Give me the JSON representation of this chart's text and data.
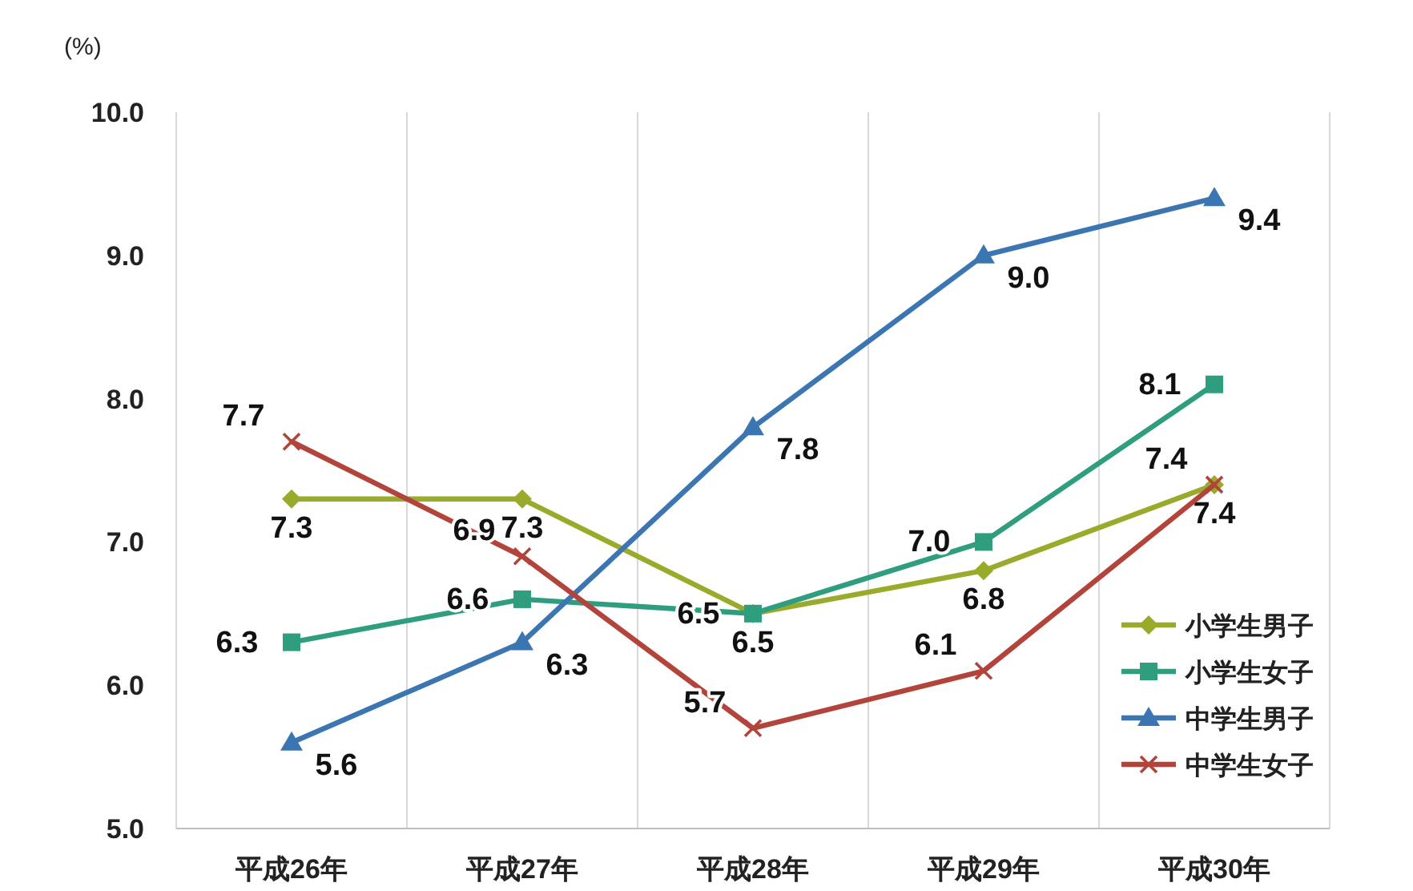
{
  "chart_data": {
    "type": "line",
    "ylabel": "(%)",
    "categories": [
      "平成26年",
      "平成27年",
      "平成28年",
      "平成29年",
      "平成30年"
    ],
    "series": [
      {
        "name": "小学生男子",
        "color": "#9aab2c",
        "marker": "diamond",
        "values": [
          7.3,
          7.3,
          6.5,
          6.8,
          7.4
        ],
        "value_labels": [
          "7.3",
          "7.3",
          "6.5",
          "6.8",
          "7.4"
        ]
      },
      {
        "name": "小学生女子",
        "color": "#2f9e7e",
        "marker": "square",
        "values": [
          6.3,
          6.6,
          6.5,
          7.0,
          8.1
        ],
        "value_labels": [
          "6.3",
          "6.6",
          "6.5",
          "7.0",
          "8.1"
        ]
      },
      {
        "name": "中学生男子",
        "color": "#3b76b2",
        "marker": "triangle",
        "values": [
          5.6,
          6.3,
          7.8,
          9.0,
          9.4
        ],
        "value_labels": [
          "5.6",
          "6.3",
          "7.8",
          "9.0",
          "9.4"
        ]
      },
      {
        "name": "中学生女子",
        "color": "#b2443b",
        "marker": "cross",
        "values": [
          7.7,
          6.9,
          5.7,
          6.1,
          7.4
        ],
        "value_labels": [
          "7.7",
          "6.9",
          "5.7",
          "6.1",
          "7.4"
        ]
      }
    ],
    "ylim": [
      5,
      10
    ],
    "yticks": [
      {
        "value": 5,
        "label": "5.0"
      },
      {
        "value": 6,
        "label": "6.0"
      },
      {
        "value": 7,
        "label": "7.0"
      },
      {
        "value": 8,
        "label": "8.0"
      },
      {
        "value": 9,
        "label": "9.0"
      },
      {
        "value": 10,
        "label": "10.0"
      }
    ],
    "grid": "x",
    "legend": "right"
  }
}
